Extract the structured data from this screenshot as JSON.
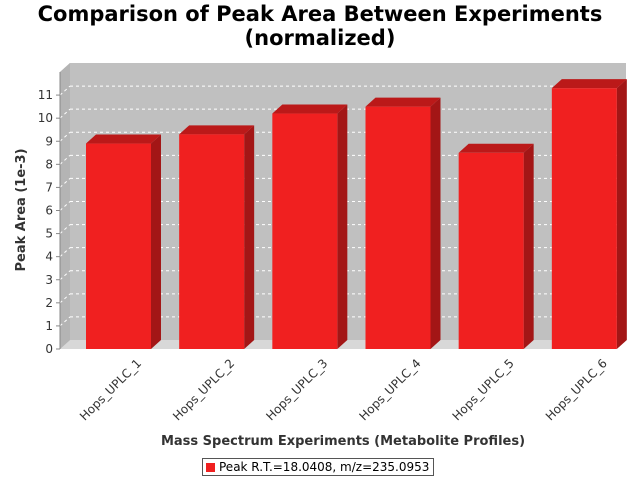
{
  "chart_data": {
    "type": "bar",
    "title_lines": [
      "Comparison of Peak Area Between Experiments",
      "(normalized)"
    ],
    "xlabel": "Mass Spectrum Experiments (Metabolite Profiles)",
    "ylabel": "Peak Area (1e-3)",
    "categories": [
      "Hops_UPLC_1",
      "Hops_UPLC_2",
      "Hops_UPLC_3",
      "Hops_UPLC_4",
      "Hops_UPLC_5",
      "Hops_UPLC_6"
    ],
    "series": [
      {
        "name": "Peak R.T.=18.0408, m/z=235.0953",
        "values": [
          8.9,
          9.3,
          10.2,
          10.5,
          8.5,
          11.3
        ],
        "color": "#f02020"
      }
    ],
    "ylim": [
      0,
      12
    ],
    "yticks": [
      "0",
      "1",
      "2",
      "3",
      "4",
      "5",
      "6",
      "7",
      "8",
      "9",
      "10",
      "11"
    ],
    "grid": true,
    "style": "3d",
    "legend_position": "bottom"
  }
}
